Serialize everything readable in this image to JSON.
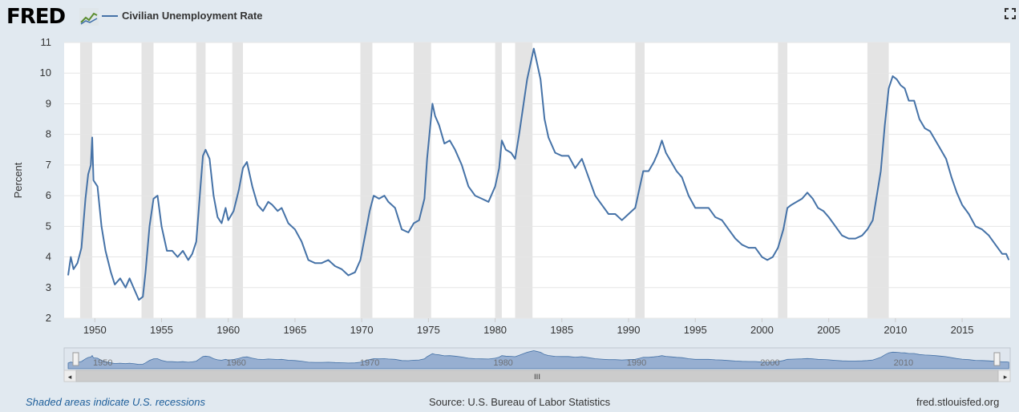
{
  "header": {
    "logo_text": "FRED",
    "series_label": "Civilian Unemployment Rate",
    "fullscreen_icon": "fullscreen-icon",
    "line_color": "#4572a7"
  },
  "footer": {
    "recession_note": "Shaded areas indicate U.S. recessions",
    "source": "Source: U.S. Bureau of Labor Statistics",
    "site": "fred.stlouisfed.org"
  },
  "chart_data": {
    "type": "line",
    "title": "",
    "ylabel": "Percent",
    "xlabel": "",
    "ylim": [
      2,
      11
    ],
    "xlim": [
      1947.7,
      2018.6
    ],
    "yticks": [
      2,
      3,
      4,
      5,
      6,
      7,
      8,
      9,
      10,
      11
    ],
    "xticks": [
      1950,
      1955,
      1960,
      1965,
      1970,
      1975,
      1980,
      1985,
      1990,
      1995,
      2000,
      2005,
      2010,
      2015
    ],
    "grid": true,
    "recessions": [
      [
        1948.9,
        1949.8
      ],
      [
        1953.5,
        1954.4
      ],
      [
        1957.6,
        1958.3
      ],
      [
        1960.3,
        1961.1
      ],
      [
        1969.9,
        1970.8
      ],
      [
        1973.9,
        1975.2
      ],
      [
        1980.0,
        1980.5
      ],
      [
        1981.5,
        1982.8
      ],
      [
        1990.5,
        1991.2
      ],
      [
        2001.2,
        2001.9
      ],
      [
        2007.9,
        2009.5
      ]
    ],
    "recession_color": "#e4e4e4",
    "series": [
      {
        "name": "Civilian Unemployment Rate",
        "color": "#4572a7",
        "x": [
          1948.0,
          1948.2,
          1948.4,
          1948.7,
          1949.0,
          1949.3,
          1949.5,
          1949.7,
          1949.8,
          1949.9,
          1950.2,
          1950.5,
          1950.8,
          1951.2,
          1951.5,
          1951.9,
          1952.3,
          1952.6,
          1952.8,
          1953.0,
          1953.3,
          1953.6,
          1953.8,
          1954.1,
          1954.4,
          1954.7,
          1955.0,
          1955.4,
          1955.8,
          1956.2,
          1956.6,
          1957.0,
          1957.3,
          1957.6,
          1957.9,
          1958.1,
          1958.3,
          1958.6,
          1958.9,
          1959.2,
          1959.5,
          1959.8,
          1960.0,
          1960.4,
          1960.8,
          1961.1,
          1961.4,
          1961.8,
          1962.2,
          1962.6,
          1963.0,
          1963.3,
          1963.7,
          1964.0,
          1964.5,
          1965.0,
          1965.5,
          1966.0,
          1966.5,
          1967.0,
          1967.5,
          1968.0,
          1968.5,
          1969.0,
          1969.5,
          1969.9,
          1970.3,
          1970.6,
          1970.9,
          1971.3,
          1971.7,
          1972.0,
          1972.5,
          1973.0,
          1973.5,
          1973.9,
          1974.3,
          1974.7,
          1974.9,
          1975.1,
          1975.3,
          1975.5,
          1975.8,
          1976.2,
          1976.6,
          1977.0,
          1977.5,
          1978.0,
          1978.5,
          1979.0,
          1979.5,
          1980.0,
          1980.3,
          1980.5,
          1980.8,
          1981.2,
          1981.5,
          1981.8,
          1982.1,
          1982.4,
          1982.7,
          1982.9,
          1983.1,
          1983.4,
          1983.7,
          1984.0,
          1984.5,
          1985.0,
          1985.5,
          1986.0,
          1986.5,
          1987.0,
          1987.5,
          1988.0,
          1988.5,
          1989.0,
          1989.5,
          1990.0,
          1990.5,
          1990.8,
          1991.1,
          1991.5,
          1991.9,
          1992.2,
          1992.5,
          1992.8,
          1993.2,
          1993.6,
          1994.0,
          1994.5,
          1995.0,
          1995.5,
          1996.0,
          1996.5,
          1997.0,
          1997.5,
          1998.0,
          1998.5,
          1999.0,
          1999.5,
          2000.0,
          2000.4,
          2000.8,
          2001.2,
          2001.6,
          2001.9,
          2002.2,
          2002.6,
          2003.0,
          2003.4,
          2003.8,
          2004.2,
          2004.6,
          2005.0,
          2005.5,
          2006.0,
          2006.5,
          2007.0,
          2007.5,
          2007.9,
          2008.3,
          2008.6,
          2008.9,
          2009.2,
          2009.5,
          2009.8,
          2010.1,
          2010.4,
          2010.7,
          2011.0,
          2011.4,
          2011.8,
          2012.2,
          2012.6,
          2013.0,
          2013.4,
          2013.8,
          2014.2,
          2014.6,
          2015.0,
          2015.5,
          2016.0,
          2016.5,
          2017.0,
          2017.5,
          2018.0,
          2018.3,
          2018.5
        ],
        "values": [
          3.4,
          4.0,
          3.6,
          3.8,
          4.3,
          5.9,
          6.7,
          7.0,
          7.9,
          6.5,
          6.3,
          5.0,
          4.2,
          3.5,
          3.1,
          3.3,
          3.0,
          3.3,
          3.1,
          2.9,
          2.6,
          2.7,
          3.5,
          5.0,
          5.9,
          6.0,
          5.0,
          4.2,
          4.2,
          4.0,
          4.2,
          3.9,
          4.1,
          4.5,
          6.2,
          7.3,
          7.5,
          7.2,
          6.0,
          5.3,
          5.1,
          5.6,
          5.2,
          5.5,
          6.2,
          6.9,
          7.1,
          6.3,
          5.7,
          5.5,
          5.8,
          5.7,
          5.5,
          5.6,
          5.1,
          4.9,
          4.5,
          3.9,
          3.8,
          3.8,
          3.9,
          3.7,
          3.6,
          3.4,
          3.5,
          3.9,
          4.8,
          5.5,
          6.0,
          5.9,
          6.0,
          5.8,
          5.6,
          4.9,
          4.8,
          5.1,
          5.2,
          5.9,
          7.2,
          8.1,
          9.0,
          8.6,
          8.3,
          7.7,
          7.8,
          7.5,
          7.0,
          6.3,
          6.0,
          5.9,
          5.8,
          6.3,
          6.9,
          7.8,
          7.5,
          7.4,
          7.2,
          8.0,
          8.9,
          9.8,
          10.4,
          10.8,
          10.4,
          9.8,
          8.5,
          7.9,
          7.4,
          7.3,
          7.3,
          6.9,
          7.2,
          6.6,
          6.0,
          5.7,
          5.4,
          5.4,
          5.2,
          5.4,
          5.6,
          6.2,
          6.8,
          6.8,
          7.1,
          7.4,
          7.8,
          7.4,
          7.1,
          6.8,
          6.6,
          6.0,
          5.6,
          5.6,
          5.6,
          5.3,
          5.2,
          4.9,
          4.6,
          4.4,
          4.3,
          4.3,
          4.0,
          3.9,
          4.0,
          4.3,
          4.9,
          5.6,
          5.7,
          5.8,
          5.9,
          6.1,
          5.9,
          5.6,
          5.5,
          5.3,
          5.0,
          4.7,
          4.6,
          4.6,
          4.7,
          4.9,
          5.2,
          6.0,
          6.8,
          8.3,
          9.5,
          9.9,
          9.8,
          9.6,
          9.5,
          9.1,
          9.1,
          8.5,
          8.2,
          8.1,
          7.8,
          7.5,
          7.2,
          6.6,
          6.1,
          5.7,
          5.4,
          5.0,
          4.9,
          4.7,
          4.4,
          4.1,
          4.1,
          3.9
        ]
      }
    ]
  },
  "navigator": {
    "tick_labels": [
      "1950",
      "1960",
      "1970",
      "1980",
      "1990",
      "2000",
      "2010"
    ],
    "grip_label": "III"
  }
}
